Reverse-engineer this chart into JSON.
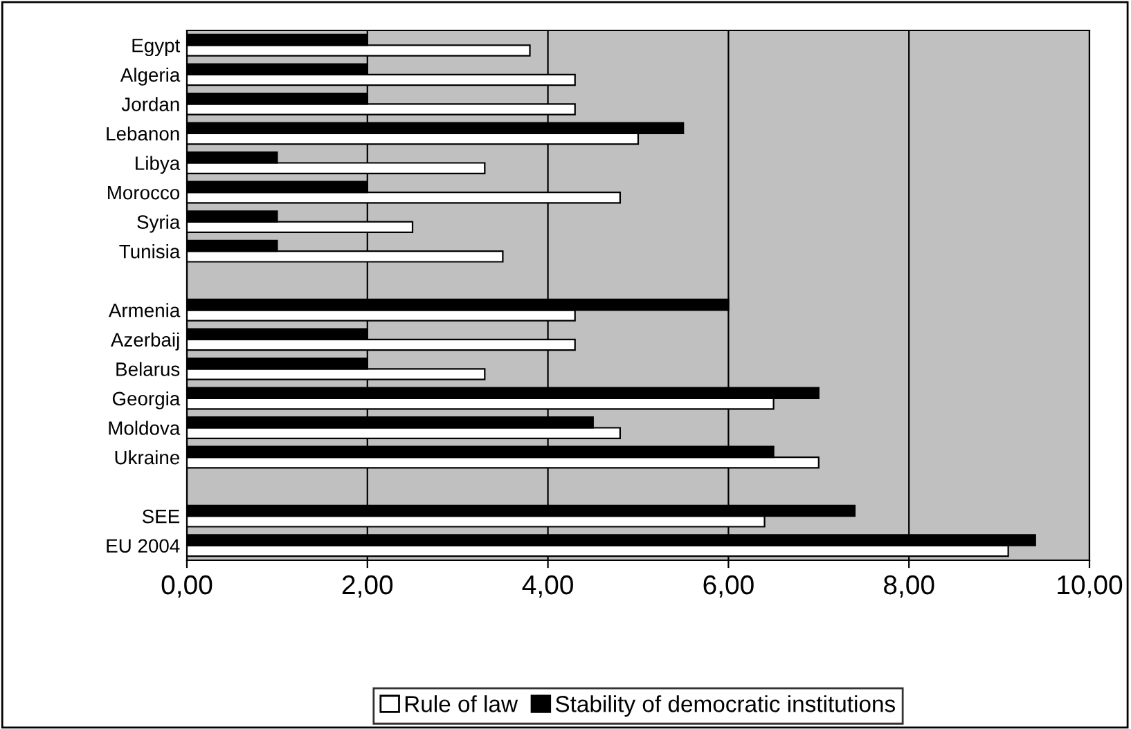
{
  "chart_data": {
    "type": "bar",
    "orientation": "horizontal",
    "categories": [
      "Egypt",
      "Algeria",
      "Jordan",
      "Lebanon",
      "Libya",
      "Morocco",
      "Syria",
      "Tunisia",
      null,
      "Armenia",
      "Azerbaij",
      "Belarus",
      "Georgia",
      "Moldova",
      "Ukraine",
      null,
      "SEE",
      "EU 2004"
    ],
    "series": [
      {
        "name": "Rule of law",
        "color": "#ffffff",
        "values": [
          3.8,
          4.3,
          4.3,
          5.0,
          3.3,
          4.8,
          2.5,
          3.5,
          null,
          4.3,
          4.3,
          3.3,
          6.5,
          4.8,
          7.0,
          null,
          6.4,
          9.1
        ]
      },
      {
        "name": "Stability of democratic institutions",
        "color": "#000000",
        "values": [
          2.0,
          2.0,
          2.0,
          5.5,
          1.0,
          2.0,
          1.0,
          1.0,
          null,
          6.0,
          2.0,
          2.0,
          7.0,
          4.5,
          6.5,
          null,
          7.4,
          9.4
        ]
      }
    ],
    "xlim": [
      0,
      10
    ],
    "xticks": [
      {
        "value": 0,
        "label": "0,00"
      },
      {
        "value": 2,
        "label": "2,00"
      },
      {
        "value": 4,
        "label": "4,00"
      },
      {
        "value": 6,
        "label": "6,00"
      },
      {
        "value": 8,
        "label": "8,00"
      },
      {
        "value": 10,
        "label": "10,00"
      }
    ],
    "grid": "x",
    "legend": "bottom"
  }
}
